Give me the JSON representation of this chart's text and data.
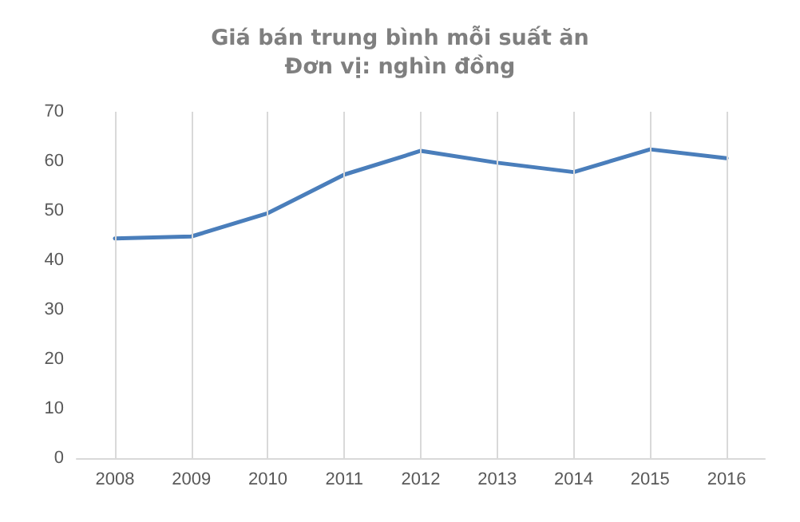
{
  "chart_data": {
    "type": "line",
    "title": "Giá bán trung bình mỗi suất ăn",
    "subtitle": "Đơn vị: nghìn đồng",
    "categories": [
      "2008",
      "2009",
      "2010",
      "2011",
      "2012",
      "2013",
      "2014",
      "2015",
      "2016"
    ],
    "series": [
      {
        "color": "#4a7ebb",
        "values": [
          44.4,
          44.8,
          49.5,
          57.3,
          62.1,
          59.7,
          57.8,
          62.4,
          60.6
        ]
      }
    ],
    "ylim": [
      0,
      70
    ],
    "yticks": [
      0,
      10,
      20,
      30,
      40,
      50,
      60,
      70
    ],
    "grid": "x",
    "marker": "none",
    "line_style": "solid"
  }
}
